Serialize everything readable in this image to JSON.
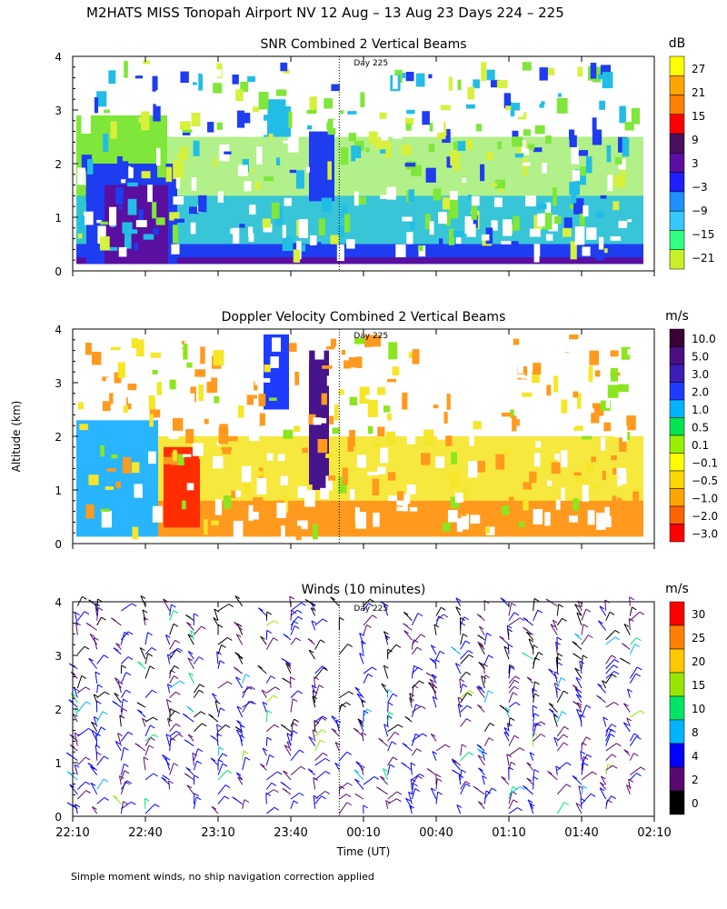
{
  "title": "M2HATS MISS Tonopah Airport NV  12 Aug – 13 Aug 23 Days 224 – 225",
  "footnote": "Simple moment winds, no ship navigation correction applied",
  "ylabel": "Altitude (km)",
  "xlabel": "Time (UT)",
  "day_marker_label": "Day 225",
  "x_ticks": [
    "22:10",
    "22:40",
    "23:10",
    "23:40",
    "00:10",
    "00:40",
    "01:10",
    "01:40",
    "02:10"
  ],
  "y_ticks": [
    "0",
    "1",
    "2",
    "3",
    "4"
  ],
  "chart_data": [
    {
      "type": "heatmap",
      "title": "SNR Combined 2 Vertical Beams",
      "colorbar_unit": "dB",
      "colorbar_ticks": [
        "27",
        "21",
        "15",
        "9",
        "3",
        "−3",
        "−9",
        "−15",
        "−21"
      ],
      "colorbar_colors": [
        "#ffff00",
        "#ffa500",
        "#ff7f00",
        "#ff0000",
        "#4b0f5f",
        "#5a0fa0",
        "#1e1eff",
        "#1e90ff",
        "#37c8ff",
        "#32ff7f",
        "#c8f028"
      ],
      "xlim": [
        "22:10",
        "02:10"
      ],
      "ylim": [
        0,
        4
      ],
      "grid": false,
      "day_marker_time": "00:00",
      "colors": {
        "green": "#7fe63a",
        "cyan": "#22bde6",
        "blue": "#1e3cf0",
        "purple": "#5a0fa0",
        "yellow": "#d7f03c",
        "orange": "#ffa000"
      }
    },
    {
      "type": "heatmap",
      "title": "Doppler Velocity Combined 2 Vertical Beams",
      "colorbar_unit": "m/s",
      "colorbar_ticks": [
        "10.0",
        "5.0",
        "3.0",
        "2.0",
        "1.0",
        "0.5",
        "0.1",
        "−0.1",
        "−0.5",
        "−1.0",
        "−2.0",
        "−3.0"
      ],
      "colorbar_colors": [
        "#3a0033",
        "#4b0f82",
        "#3c1eb4",
        "#1e3cff",
        "#00b4ff",
        "#00e650",
        "#96f000",
        "#ffff00",
        "#ffd700",
        "#ffa500",
        "#ff6400",
        "#ff0000"
      ],
      "xlim": [
        "22:10",
        "02:10"
      ],
      "ylim": [
        0,
        4
      ],
      "grid": false,
      "day_marker_time": "00:00",
      "colors": {
        "orange": "#ff9a1e",
        "yellow": "#f5e628",
        "green": "#8ce61e",
        "red": "#ff2d00",
        "cyan": "#28b4ff",
        "purple": "#46148c"
      }
    },
    {
      "type": "scatter",
      "title": "Winds (10 minutes)",
      "colorbar_unit": "m/s",
      "colorbar_ticks": [
        "30",
        "25",
        "20",
        "15",
        "10",
        "8",
        "4",
        "2",
        "0"
      ],
      "colorbar_colors": [
        "#ff0000",
        "#ff8000",
        "#ffc800",
        "#96e600",
        "#00e664",
        "#00b4ff",
        "#0000ff",
        "#5a0a6e",
        "#000000"
      ],
      "xlim": [
        "22:10",
        "02:10"
      ],
      "ylim": [
        0,
        4
      ],
      "grid": false,
      "day_marker_time": "00:00",
      "profile_times": [
        "22:12",
        "22:20",
        "22:30",
        "22:40",
        "22:50",
        "23:00",
        "23:10",
        "23:20",
        "23:30",
        "23:40",
        "23:50",
        "00:00",
        "00:10",
        "00:20",
        "00:30",
        "00:40",
        "00:50",
        "01:00",
        "01:10",
        "01:20",
        "01:30",
        "01:40",
        "01:50",
        "02:00"
      ]
    }
  ]
}
